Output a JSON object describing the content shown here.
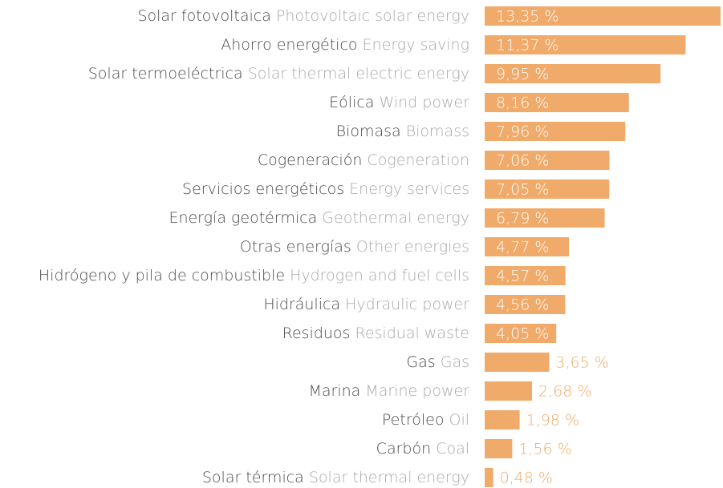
{
  "chart_data": {
    "type": "bar",
    "orientation": "horizontal",
    "categories": [
      "Solar fotovoltaica",
      "Ahorro energético",
      "Solar termoeléctrica",
      "Eólica",
      "Biomasa",
      "Cogeneración",
      "Servicios energéticos",
      "Energía geotérmica",
      "Otras energías",
      "Hidrógeno y pila de combustible",
      "Hidráulica",
      "Residuos",
      "Gas",
      "Marina",
      "Petróleo",
      "Carbón",
      "Solar térmica"
    ],
    "categories_en": [
      "Photovoltaic solar energy",
      "Energy saving",
      "Solar thermal electric energy",
      "Wind power",
      "Biomass",
      "Cogeneration",
      "Energy services",
      "Geothermal energy",
      "Other energies",
      "Hydrogen and fuel cells",
      "Hydraulic power",
      "Residual waste",
      "Gas",
      "Marine power",
      "Oil",
      "Coal",
      "Solar thermal energy"
    ],
    "values": [
      13.35,
      11.37,
      9.95,
      8.16,
      7.96,
      7.06,
      7.05,
      6.79,
      4.77,
      4.57,
      4.56,
      4.05,
      3.65,
      2.68,
      1.98,
      1.56,
      0.48
    ],
    "value_labels": [
      "13,35 %",
      "11,37 %",
      "9,95 %",
      "8,16 %",
      "7,96 %",
      "7,06 %",
      "7,05 %",
      "6,79 %",
      "4,77 %",
      "4,57 %",
      "4,56 %",
      "4,05 %",
      "3,65 %",
      "2,68 %",
      "1,98 %",
      "1,56 %",
      "0,48 %"
    ],
    "color": "#f0aa6a"
  }
}
